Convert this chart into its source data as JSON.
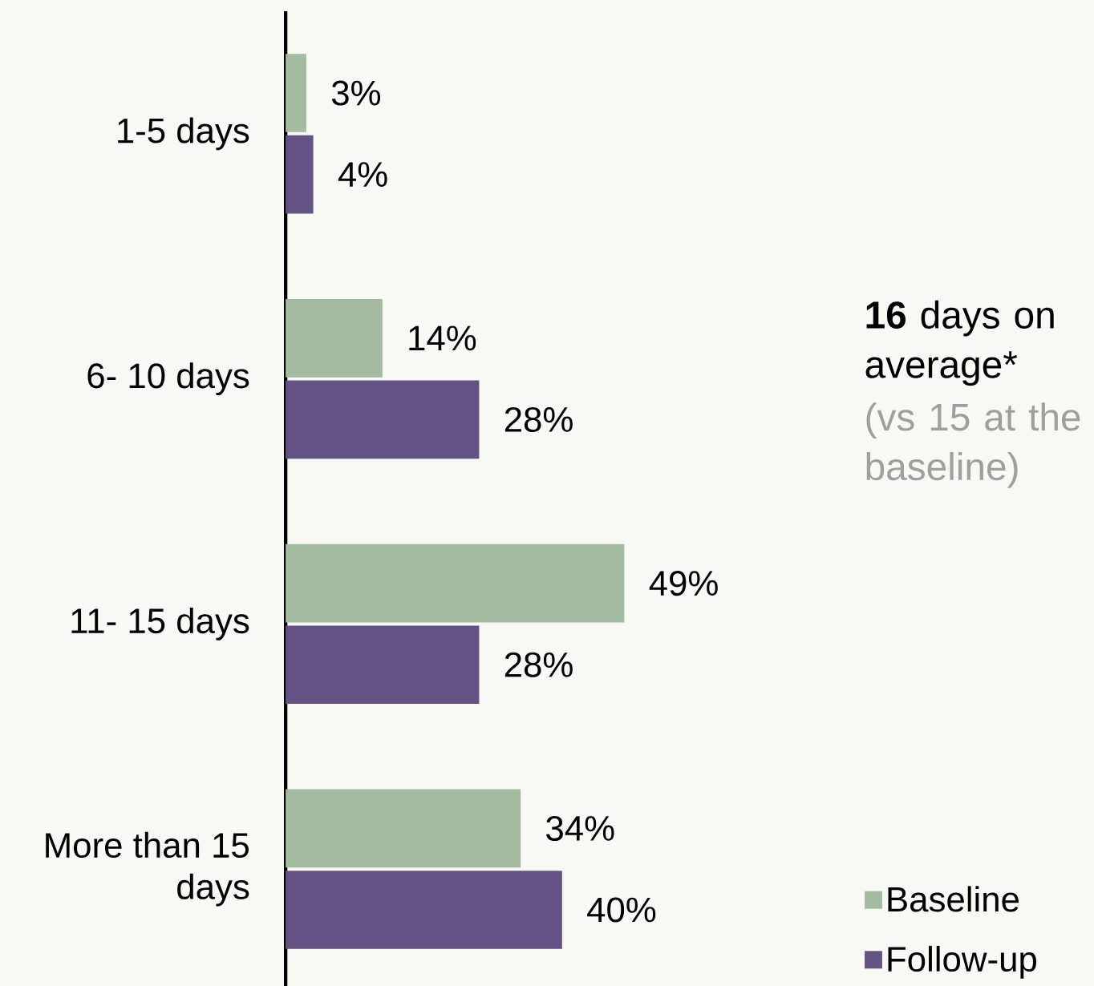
{
  "chart_data": {
    "type": "bar",
    "orientation": "horizontal",
    "categories": [
      "1-5 days",
      "6- 10 days",
      "11- 15 days",
      "More than 15 days"
    ],
    "series": [
      {
        "name": "Baseline",
        "color": "#a3bb9f",
        "values": [
          3,
          14,
          49,
          34
        ],
        "value_labels": [
          "3%",
          "14%",
          "49%",
          "34%"
        ]
      },
      {
        "name": "Follow-up",
        "color": "#625384",
        "values": [
          4,
          28,
          28,
          40
        ],
        "value_labels": [
          "4%",
          "28%",
          "28%",
          "40%"
        ]
      }
    ],
    "annotations": [
      "**16** days on average*",
      "(vs 15 at the baseline)"
    ],
    "legend": "bottom right"
  }
}
